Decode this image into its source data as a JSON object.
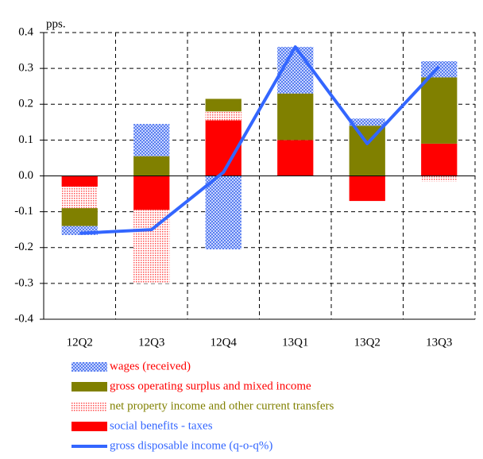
{
  "chart_data": {
    "type": "bar",
    "y_label": "pps.",
    "categories": [
      "12Q2",
      "12Q3",
      "12Q4",
      "13Q1",
      "13Q2",
      "13Q3"
    ],
    "ylim": [
      -0.4,
      0.4
    ],
    "yticks": [
      -0.4,
      -0.3,
      -0.2,
      -0.1,
      {
        "value": 0,
        "label": "0.0"
      },
      0.1,
      0.2,
      0.3,
      0.4
    ],
    "grid": true,
    "stacked": true,
    "series": [
      {
        "name": "wages (received)",
        "type": "bar",
        "color": "#6f8ff0",
        "pattern": "check",
        "label_color": "#ff0000",
        "values": [
          -0.025,
          0.09,
          -0.205,
          0.13,
          0.02,
          0.045
        ]
      },
      {
        "name": "gross operating surplus and mixed income",
        "type": "bar",
        "color": "#808000",
        "pattern": "solid",
        "label_color": "#ff0000",
        "values": [
          -0.05,
          0.055,
          0.035,
          0.13,
          0.14,
          0.185
        ]
      },
      {
        "name": "net property income and other current transfers",
        "type": "bar",
        "color": "#ff6060",
        "pattern": "dots",
        "label_color": "#808000",
        "values": [
          -0.06,
          -0.205,
          0.025,
          0,
          0,
          -0.015
        ]
      },
      {
        "name": "social benefits - taxes",
        "type": "bar",
        "color": "#ff0000",
        "pattern": "solid",
        "label_color": "#3366ff",
        "values": [
          -0.03,
          -0.095,
          0.155,
          0.1,
          -0.07,
          0.09
        ]
      },
      {
        "name": "gross disposable income (q-o-q%)",
        "type": "line",
        "color": "#3366ff",
        "label_color": "#3366ff",
        "values": [
          -0.16,
          -0.15,
          0.01,
          0.36,
          0.09,
          0.305
        ]
      }
    ]
  }
}
